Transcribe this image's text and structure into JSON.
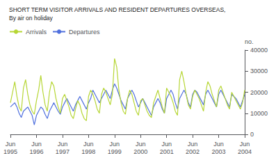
{
  "chart_data": {
    "type": "line",
    "title": "SHORT TERM VISITOR ARRIVALS AND RESIDENT DEPARTURES OVERSEAS,",
    "subtitle": "By air on holiday",
    "ylabel": "no.",
    "categories": [
      "Jun\n1995",
      null,
      null,
      null,
      null,
      null,
      null,
      null,
      null,
      null,
      null,
      null,
      "Jun\n1996",
      null,
      null,
      null,
      null,
      null,
      null,
      null,
      null,
      null,
      null,
      null,
      "Jun\n1997",
      null,
      null,
      null,
      null,
      null,
      null,
      null,
      null,
      null,
      null,
      null,
      "Jun\n1998",
      null,
      null,
      null,
      null,
      null,
      null,
      null,
      null,
      null,
      null,
      null,
      "Jun\n1999",
      null,
      null,
      null,
      null,
      null,
      null,
      null,
      null,
      null,
      null,
      null,
      "Jun\n2000",
      null,
      null,
      null,
      null,
      null,
      null,
      null,
      null,
      null,
      null,
      null,
      "Jun\n2001",
      null,
      null,
      null,
      null,
      null,
      null,
      null,
      null,
      null,
      null,
      null,
      "Jun\n2002",
      null,
      null,
      null,
      null,
      null,
      null,
      null,
      null,
      null,
      null,
      null,
      "Jun\n2003",
      null,
      null,
      null,
      null,
      null,
      null,
      null,
      null,
      null,
      null,
      null,
      "Jun\n2004"
    ],
    "series": [
      {
        "name": "Departures",
        "values": [
          13000,
          14000,
          15000,
          13000,
          10000,
          8000,
          11000,
          12000,
          13000,
          11000,
          9000,
          4500,
          9000,
          11000,
          13000,
          12000,
          9500,
          7500,
          11000,
          13000,
          15000,
          13000,
          11000,
          9500,
          13000,
          15000,
          17000,
          15000,
          13000,
          11000,
          14000,
          16000,
          18000,
          16000,
          14000,
          12000,
          15000,
          17000,
          21000,
          19000,
          17000,
          15000,
          17000,
          19000,
          21000,
          19000,
          17000,
          21000,
          24000,
          22000,
          19000,
          16000,
          14000,
          12000,
          17000,
          19000,
          21000,
          19000,
          16000,
          13000,
          15000,
          17000,
          15000,
          13000,
          11000,
          9000,
          13000,
          15000,
          17000,
          15000,
          12000,
          10000,
          17000,
          19000,
          21000,
          19000,
          15000,
          12000,
          17000,
          19000,
          21000,
          19000,
          15000,
          13000,
          19000,
          21000,
          20000,
          18000,
          16000,
          14000,
          19000,
          21000,
          19000,
          17000,
          15000,
          13000,
          19000,
          21000,
          19000,
          17000,
          15000,
          13000,
          19000,
          18000,
          17000,
          15000,
          13000,
          16000,
          19000
        ]
      },
      {
        "name": "Arrivals",
        "values": [
          15000,
          20000,
          25000,
          18000,
          13000,
          11000,
          22000,
          26000,
          19000,
          14000,
          11000,
          9500,
          16000,
          21000,
          28000,
          20000,
          14000,
          11000,
          20000,
          25000,
          23000,
          17000,
          13000,
          10000,
          17000,
          19000,
          16000,
          13000,
          9000,
          7500,
          12000,
          16000,
          14000,
          10000,
          7500,
          6500,
          18000,
          21000,
          19000,
          16000,
          12000,
          10000,
          19000,
          22000,
          20000,
          17000,
          14000,
          19000,
          36000,
          32000,
          21000,
          15000,
          11000,
          9500,
          17000,
          21000,
          19000,
          15000,
          11000,
          9000,
          16000,
          17000,
          14000,
          11000,
          9000,
          8000,
          15000,
          18000,
          21000,
          17000,
          13000,
          10000,
          22000,
          20000,
          18000,
          15000,
          11000,
          9000,
          26000,
          30000,
          25000,
          19000,
          14000,
          12000,
          18000,
          21000,
          19000,
          17000,
          14000,
          11000,
          20000,
          25000,
          23000,
          19000,
          16000,
          13000,
          21000,
          23000,
          20000,
          17000,
          14000,
          12000,
          20000,
          18000,
          16000,
          14000,
          12000,
          15000,
          21000
        ]
      }
    ],
    "ylim": [
      0,
      40000
    ],
    "yticks": [
      0,
      10000,
      20000,
      30000,
      40000
    ],
    "legend": "upper left",
    "grid": false
  }
}
